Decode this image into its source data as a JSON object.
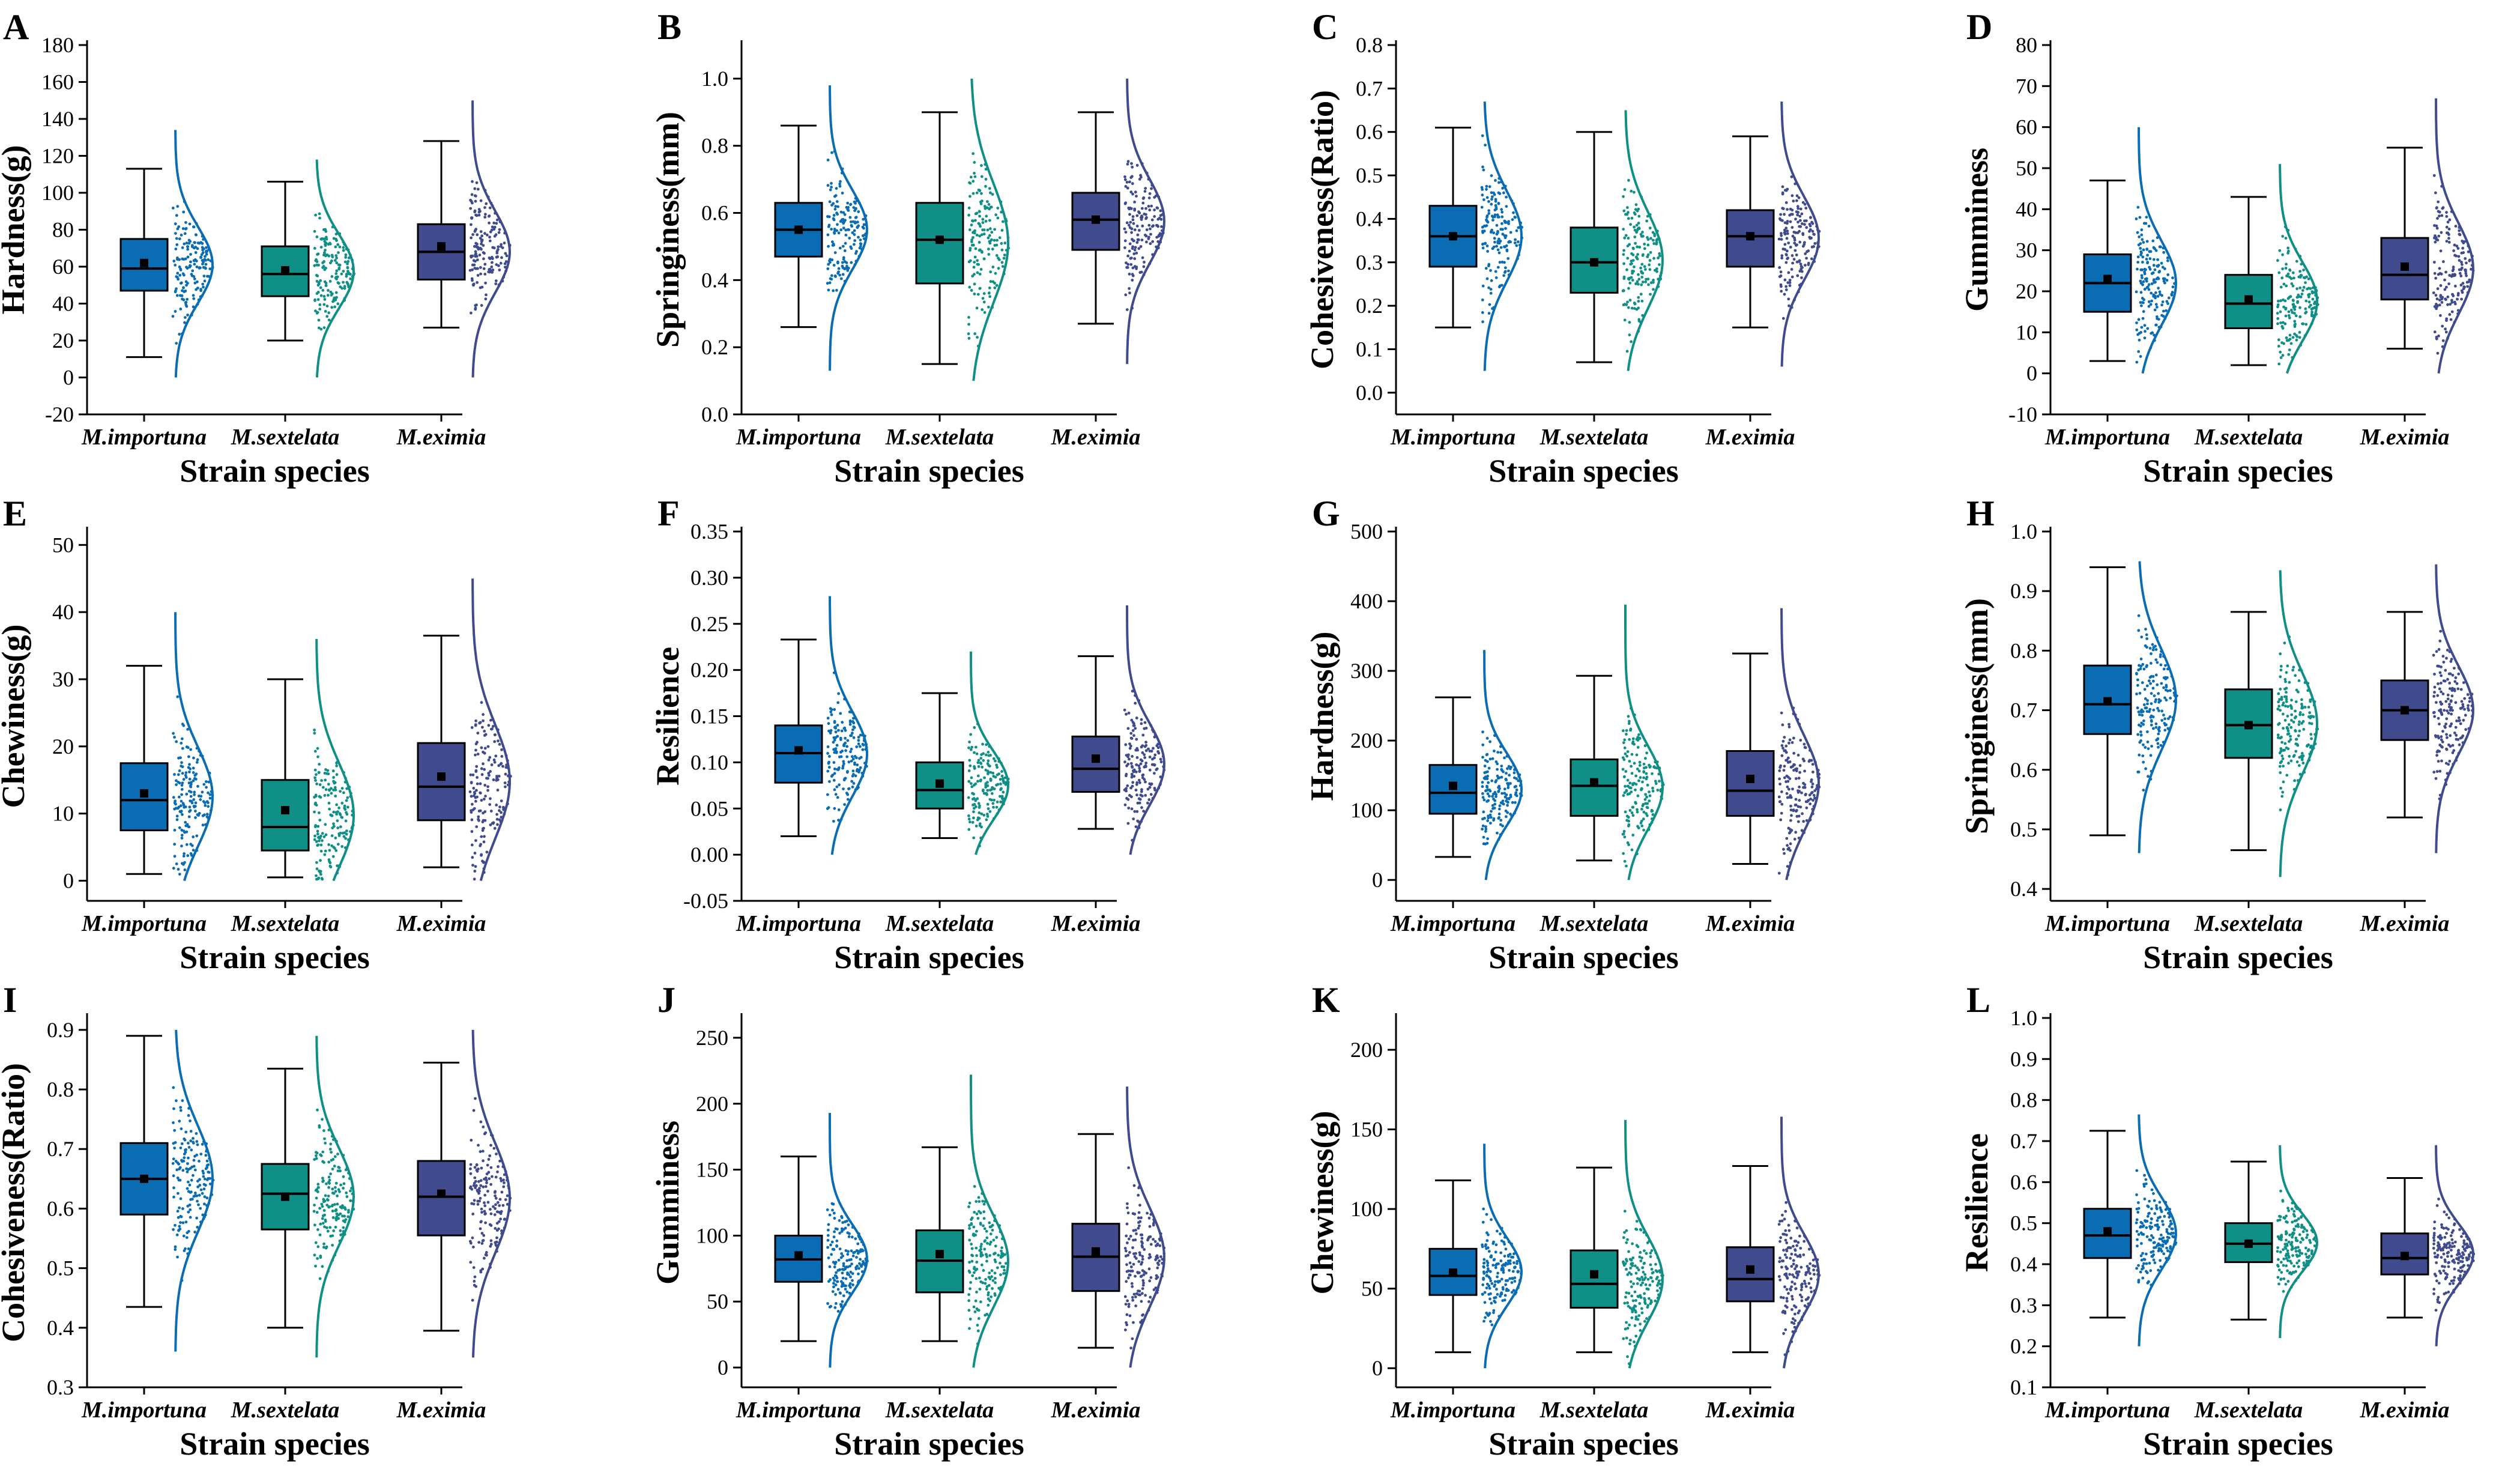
{
  "colors": {
    "series": [
      "#0a6db3",
      "#0f8f86",
      "#3f4b8c"
    ],
    "axis": "#000000"
  },
  "chart_data": [
    {
      "panel_label": "A",
      "type": "raincloud-boxplot",
      "ylabel": "Hardness(g)",
      "xlabel": "Strain species",
      "categories": [
        "M.importuna",
        "M.sextelata",
        "M.eximia"
      ],
      "ylim": [
        -20,
        180
      ],
      "yticks": [
        "-20",
        "0",
        "20",
        "40",
        "60",
        "80",
        "100",
        "120",
        "140",
        "160",
        "180"
      ],
      "boxes": [
        {
          "min": 11,
          "q1": 47,
          "median": 59,
          "q3": 75,
          "max": 113,
          "mean": 62,
          "cloud": [
            0,
            134
          ]
        },
        {
          "min": 20,
          "q1": 44,
          "median": 56,
          "q3": 71,
          "max": 106,
          "mean": 58,
          "cloud": [
            0,
            118
          ]
        },
        {
          "min": 27,
          "q1": 53,
          "median": 68,
          "q3": 83,
          "max": 128,
          "mean": 71,
          "cloud": [
            0,
            150
          ]
        }
      ]
    },
    {
      "panel_label": "B",
      "type": "raincloud-boxplot",
      "ylabel": "Springiness(mm)",
      "xlabel": "Strain species",
      "categories": [
        "M.importuna",
        "M.sextelata",
        "M.eximia"
      ],
      "ylim": [
        0,
        1.1
      ],
      "yticks": [
        "0.0",
        "0.2",
        "0.4",
        "0.6",
        "0.8",
        "1.0"
      ],
      "boxes": [
        {
          "min": 0.26,
          "q1": 0.47,
          "median": 0.55,
          "q3": 0.63,
          "max": 0.86,
          "mean": 0.55,
          "cloud": [
            0.13,
            0.98
          ]
        },
        {
          "min": 0.15,
          "q1": 0.39,
          "median": 0.52,
          "q3": 0.63,
          "max": 0.9,
          "mean": 0.52,
          "cloud": [
            0.1,
            1.0
          ]
        },
        {
          "min": 0.27,
          "q1": 0.49,
          "median": 0.58,
          "q3": 0.66,
          "max": 0.9,
          "mean": 0.58,
          "cloud": [
            0.15,
            1.0
          ]
        }
      ]
    },
    {
      "panel_label": "C",
      "type": "raincloud-boxplot",
      "ylabel": "Cohesiveness(Ratio)",
      "xlabel": "Strain species",
      "categories": [
        "M.importuna",
        "M.sextelata",
        "M.eximia"
      ],
      "ylim": [
        -0.05,
        0.8
      ],
      "yticks": [
        "0.0",
        "0.1",
        "0.2",
        "0.3",
        "0.4",
        "0.5",
        "0.6",
        "0.7",
        "0.8"
      ],
      "boxes": [
        {
          "min": 0.15,
          "q1": 0.29,
          "median": 0.36,
          "q3": 0.43,
          "max": 0.61,
          "mean": 0.36,
          "cloud": [
            0.05,
            0.67
          ]
        },
        {
          "min": 0.07,
          "q1": 0.23,
          "median": 0.3,
          "q3": 0.38,
          "max": 0.6,
          "mean": 0.3,
          "cloud": [
            0.05,
            0.65
          ]
        },
        {
          "min": 0.15,
          "q1": 0.29,
          "median": 0.36,
          "q3": 0.42,
          "max": 0.59,
          "mean": 0.36,
          "cloud": [
            0.06,
            0.67
          ]
        }
      ]
    },
    {
      "panel_label": "D",
      "type": "raincloud-boxplot",
      "ylabel": "Gumminess",
      "xlabel": "Strain species",
      "categories": [
        "M.importuna",
        "M.sextelata",
        "M.eximia"
      ],
      "ylim": [
        -10,
        80
      ],
      "yticks": [
        "-10",
        "0",
        "10",
        "20",
        "30",
        "40",
        "50",
        "60",
        "70",
        "80"
      ],
      "boxes": [
        {
          "min": 3,
          "q1": 15,
          "median": 22,
          "q3": 29,
          "max": 47,
          "mean": 23,
          "cloud": [
            0,
            60
          ]
        },
        {
          "min": 2,
          "q1": 11,
          "median": 17,
          "q3": 24,
          "max": 43,
          "mean": 18,
          "cloud": [
            0,
            51
          ]
        },
        {
          "min": 6,
          "q1": 18,
          "median": 24,
          "q3": 33,
          "max": 55,
          "mean": 26,
          "cloud": [
            0,
            67
          ]
        }
      ]
    },
    {
      "panel_label": "E",
      "type": "raincloud-boxplot",
      "ylabel": "Chewiness(g)",
      "xlabel": "Strain species",
      "categories": [
        "M.importuna",
        "M.sextelata",
        "M.eximia"
      ],
      "ylim": [
        -3,
        52
      ],
      "yticks": [
        "0",
        "10",
        "20",
        "30",
        "40",
        "50"
      ],
      "boxes": [
        {
          "min": 1,
          "q1": 7.5,
          "median": 12,
          "q3": 17.5,
          "max": 32,
          "mean": 13,
          "cloud": [
            0,
            40
          ]
        },
        {
          "min": 0.5,
          "q1": 4.5,
          "median": 8,
          "q3": 15,
          "max": 30,
          "mean": 10.5,
          "cloud": [
            0,
            36
          ]
        },
        {
          "min": 2,
          "q1": 9,
          "median": 14,
          "q3": 20.5,
          "max": 36.5,
          "mean": 15.5,
          "cloud": [
            0,
            45
          ]
        }
      ]
    },
    {
      "panel_label": "F",
      "type": "raincloud-boxplot",
      "ylabel": "Resilience",
      "xlabel": "Strain species",
      "categories": [
        "M.importuna",
        "M.sextelata",
        "M.eximia"
      ],
      "ylim": [
        -0.05,
        0.35
      ],
      "yticks": [
        "-0.05",
        "0.00",
        "0.05",
        "0.10",
        "0.15",
        "0.20",
        "0.25",
        "0.30",
        "0.35"
      ],
      "boxes": [
        {
          "min": 0.02,
          "q1": 0.078,
          "median": 0.11,
          "q3": 0.14,
          "max": 0.233,
          "mean": 0.113,
          "cloud": [
            0,
            0.28
          ]
        },
        {
          "min": 0.018,
          "q1": 0.05,
          "median": 0.07,
          "q3": 0.1,
          "max": 0.175,
          "mean": 0.077,
          "cloud": [
            0,
            0.22
          ]
        },
        {
          "min": 0.028,
          "q1": 0.068,
          "median": 0.093,
          "q3": 0.128,
          "max": 0.215,
          "mean": 0.104,
          "cloud": [
            0,
            0.27
          ]
        }
      ]
    },
    {
      "panel_label": "G",
      "type": "raincloud-boxplot",
      "ylabel": "Hardness(g)",
      "xlabel": "Strain species",
      "categories": [
        "M.importuna",
        "M.sextelata",
        "M.eximia"
      ],
      "ylim": [
        -30,
        500
      ],
      "yticks": [
        "0",
        "100",
        "200",
        "300",
        "400",
        "500"
      ],
      "boxes": [
        {
          "min": 33,
          "q1": 95,
          "median": 125,
          "q3": 165,
          "max": 262,
          "mean": 135,
          "cloud": [
            0,
            330
          ]
        },
        {
          "min": 28,
          "q1": 92,
          "median": 135,
          "q3": 173,
          "max": 293,
          "mean": 140,
          "cloud": [
            0,
            395
          ]
        },
        {
          "min": 23,
          "q1": 92,
          "median": 128,
          "q3": 185,
          "max": 325,
          "mean": 145,
          "cloud": [
            0,
            390
          ]
        }
      ]
    },
    {
      "panel_label": "H",
      "type": "raincloud-boxplot",
      "ylabel": "Springiness(mm)",
      "xlabel": "Strain species",
      "categories": [
        "M.importuna",
        "M.sextelata",
        "M.eximia"
      ],
      "ylim": [
        0.38,
        1.0
      ],
      "yticks": [
        "0.4",
        "0.5",
        "0.6",
        "0.7",
        "0.8",
        "0.9",
        "1.0"
      ],
      "boxes": [
        {
          "min": 0.49,
          "q1": 0.66,
          "median": 0.71,
          "q3": 0.775,
          "max": 0.94,
          "mean": 0.715,
          "cloud": [
            0.46,
            0.95
          ]
        },
        {
          "min": 0.465,
          "q1": 0.62,
          "median": 0.675,
          "q3": 0.735,
          "max": 0.865,
          "mean": 0.675,
          "cloud": [
            0.42,
            0.935
          ]
        },
        {
          "min": 0.52,
          "q1": 0.65,
          "median": 0.7,
          "q3": 0.75,
          "max": 0.865,
          "mean": 0.7,
          "cloud": [
            0.46,
            0.945
          ]
        }
      ]
    },
    {
      "panel_label": "I",
      "type": "raincloud-boxplot",
      "ylabel": "Cohesiveness(Ratio)",
      "xlabel": "Strain species",
      "categories": [
        "M.importuna",
        "M.sextelata",
        "M.eximia"
      ],
      "ylim": [
        0.3,
        0.92
      ],
      "yticks": [
        "0.3",
        "0.4",
        "0.5",
        "0.6",
        "0.7",
        "0.8",
        "0.9"
      ],
      "boxes": [
        {
          "min": 0.435,
          "q1": 0.59,
          "median": 0.65,
          "q3": 0.71,
          "max": 0.89,
          "mean": 0.65,
          "cloud": [
            0.36,
            0.9
          ]
        },
        {
          "min": 0.4,
          "q1": 0.565,
          "median": 0.625,
          "q3": 0.675,
          "max": 0.835,
          "mean": 0.62,
          "cloud": [
            0.35,
            0.89
          ]
        },
        {
          "min": 0.395,
          "q1": 0.555,
          "median": 0.62,
          "q3": 0.68,
          "max": 0.845,
          "mean": 0.625,
          "cloud": [
            0.35,
            0.9
          ]
        }
      ]
    },
    {
      "panel_label": "J",
      "type": "raincloud-boxplot",
      "ylabel": "Gumminess",
      "xlabel": "Strain species",
      "categories": [
        "M.importuna",
        "M.sextelata",
        "M.eximia"
      ],
      "ylim": [
        -15,
        265
      ],
      "yticks": [
        "0",
        "50",
        "100",
        "150",
        "200",
        "250"
      ],
      "boxes": [
        {
          "min": 20,
          "q1": 65,
          "median": 82,
          "q3": 100,
          "max": 160,
          "mean": 85,
          "cloud": [
            0,
            193
          ]
        },
        {
          "min": 20,
          "q1": 57,
          "median": 81,
          "q3": 104,
          "max": 167,
          "mean": 86,
          "cloud": [
            0,
            222
          ]
        },
        {
          "min": 15,
          "q1": 58,
          "median": 84,
          "q3": 109,
          "max": 177,
          "mean": 88,
          "cloud": [
            0,
            213
          ]
        }
      ]
    },
    {
      "panel_label": "K",
      "type": "raincloud-boxplot",
      "ylabel": "Chewiness(g)",
      "xlabel": "Strain species",
      "categories": [
        "M.importuna",
        "M.sextelata",
        "M.eximia"
      ],
      "ylim": [
        -12,
        220
      ],
      "yticks": [
        "0",
        "50",
        "100",
        "150",
        "200"
      ],
      "boxes": [
        {
          "min": 10,
          "q1": 46,
          "median": 58,
          "q3": 75,
          "max": 118,
          "mean": 60,
          "cloud": [
            0,
            141
          ]
        },
        {
          "min": 10,
          "q1": 38,
          "median": 53,
          "q3": 74,
          "max": 126,
          "mean": 59,
          "cloud": [
            0,
            156
          ]
        },
        {
          "min": 10,
          "q1": 42,
          "median": 56,
          "q3": 76,
          "max": 127,
          "mean": 62,
          "cloud": [
            0,
            158
          ]
        }
      ]
    },
    {
      "panel_label": "L",
      "type": "raincloud-boxplot",
      "ylabel": "Resilience",
      "xlabel": "Strain species",
      "categories": [
        "M.importuna",
        "M.sextelata",
        "M.eximia"
      ],
      "ylim": [
        0.1,
        1.0
      ],
      "yticks": [
        "0.1",
        "0.2",
        "0.3",
        "0.4",
        "0.5",
        "0.6",
        "0.7",
        "0.8",
        "0.9",
        "1.0"
      ],
      "boxes": [
        {
          "min": 0.27,
          "q1": 0.415,
          "median": 0.47,
          "q3": 0.535,
          "max": 0.725,
          "mean": 0.48,
          "cloud": [
            0.2,
            0.765
          ]
        },
        {
          "min": 0.265,
          "q1": 0.405,
          "median": 0.45,
          "q3": 0.5,
          "max": 0.65,
          "mean": 0.45,
          "cloud": [
            0.22,
            0.69
          ]
        },
        {
          "min": 0.27,
          "q1": 0.375,
          "median": 0.415,
          "q3": 0.475,
          "max": 0.61,
          "mean": 0.42,
          "cloud": [
            0.2,
            0.69
          ]
        }
      ]
    }
  ]
}
